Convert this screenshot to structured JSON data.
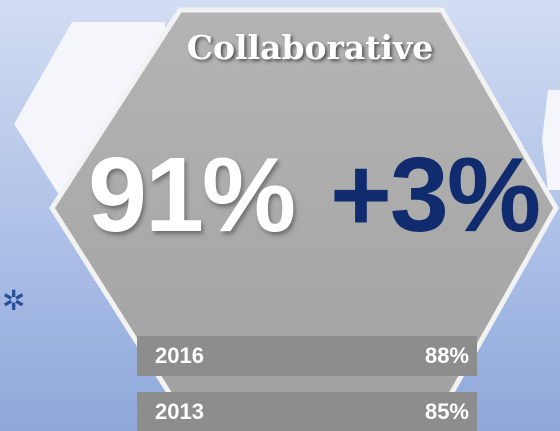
{
  "header": {
    "title": "Collaborative"
  },
  "main": {
    "value": "91%",
    "change": "+3%"
  },
  "rows": [
    [
      "2016",
      "88%"
    ],
    [
      "2013",
      "85%"
    ]
  ]
}
